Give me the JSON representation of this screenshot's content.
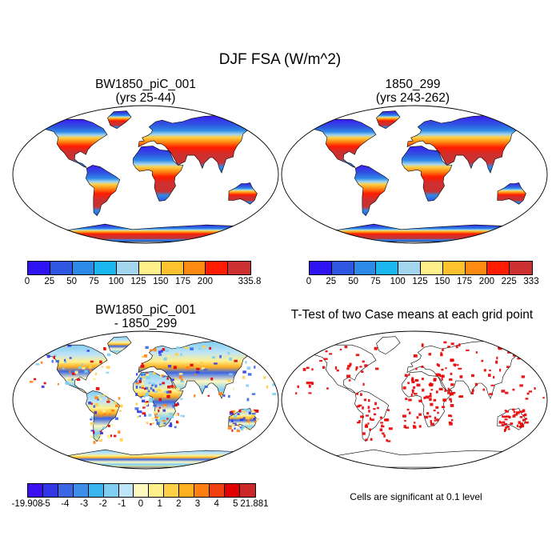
{
  "main_title": "DJF FSA (W/m^2)",
  "panels": [
    {
      "title": "BW1850_piC_001\n(yrs 25-44)",
      "kind": "mean"
    },
    {
      "title": "1850_299\n(yrs 243-262)",
      "kind": "mean"
    },
    {
      "title": "BW1850_piC_001\n- 1850_299",
      "kind": "diff"
    },
    {
      "title": "T-Test of two Case means at each grid point",
      "kind": "ttest"
    }
  ],
  "colorbars": [
    {
      "colors": [
        "#2e14f5",
        "#2f56e0",
        "#2e8ae8",
        "#1ab7f0",
        "#a4d5ee",
        "#fff08c",
        "#ffc12e",
        "#ff8a12",
        "#ff1c00",
        "#cd3030"
      ],
      "labels": [
        "0",
        "25",
        "50",
        "75",
        "100",
        "125",
        "150",
        "175",
        "200",
        "",
        "335.8"
      ]
    },
    {
      "colors": [
        "#2e14f5",
        "#2f56e0",
        "#2e8ae8",
        "#1ab7f0",
        "#a4d5ee",
        "#fff08c",
        "#ffc12e",
        "#ff8a12",
        "#ff1c00",
        "#cd3030"
      ],
      "labels": [
        "0",
        "25",
        "50",
        "75",
        "100",
        "125",
        "150",
        "175",
        "200",
        "225",
        "333"
      ]
    },
    {
      "colors": [
        "#3a10f0",
        "#3236e2",
        "#3a66e4",
        "#3c8ee8",
        "#3ab4ee",
        "#80cdf2",
        "#bfe4f7",
        "#fff9c0",
        "#fff08c",
        "#ffd046",
        "#ffb020",
        "#ff7e12",
        "#f04010",
        "#e00000",
        "#cc2828"
      ],
      "labels": [
        "-19.908",
        "-5",
        "-4",
        "-3",
        "-2",
        "-1",
        "0",
        "1",
        "2",
        "3",
        "4",
        "5",
        "21.881"
      ]
    }
  ],
  "ttest_note": "Cells are significant at 0.1 level"
}
